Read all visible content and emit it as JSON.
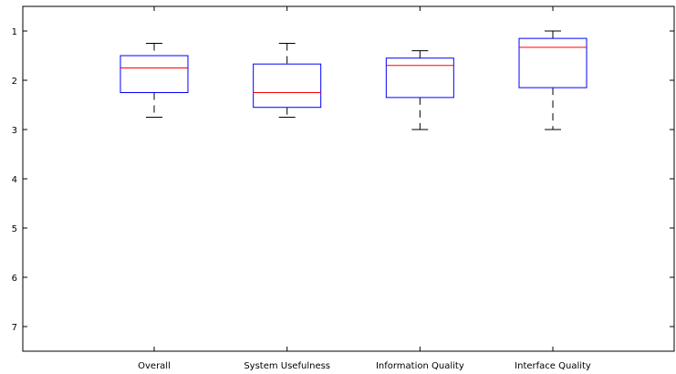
{
  "chart_data": {
    "type": "boxplot",
    "categories": [
      "Overall",
      "System Usefulness",
      "Information Quality",
      "Interface Quality"
    ],
    "boxes": [
      {
        "name": "Overall",
        "whisker_low": 1.25,
        "q1": 1.5,
        "median": 1.75,
        "q3": 2.25,
        "whisker_high": 2.75
      },
      {
        "name": "System Usefulness",
        "whisker_low": 1.25,
        "q1": 1.67,
        "median": 2.25,
        "q3": 2.55,
        "whisker_high": 2.75
      },
      {
        "name": "Information Quality",
        "whisker_low": 1.4,
        "q1": 1.55,
        "median": 1.7,
        "q3": 2.35,
        "whisker_high": 3.0
      },
      {
        "name": "Interface Quality",
        "whisker_low": 1.0,
        "q1": 1.15,
        "median": 1.33,
        "q3": 2.15,
        "whisker_high": 3.0
      }
    ],
    "y_ticks": [
      "1",
      "2",
      "3",
      "4",
      "5",
      "6",
      "7"
    ],
    "ylim": [
      0.5,
      7.5
    ],
    "y_inverted": true,
    "title": "",
    "xlabel": "",
    "ylabel": "",
    "grid": false,
    "colors": {
      "box": "#0000ff",
      "median": "#ff0000",
      "whisker": "#000000",
      "axis": "#000000"
    }
  }
}
